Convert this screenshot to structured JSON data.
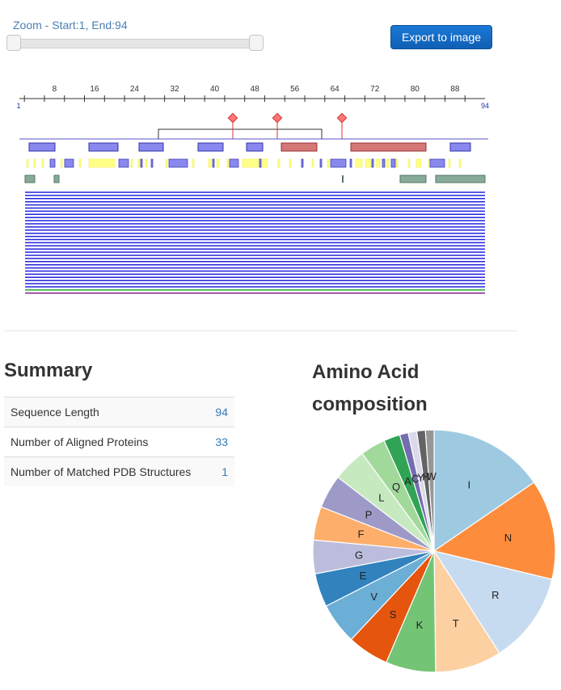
{
  "zoom": {
    "label": "Zoom - Start:1, End:94",
    "start": 1,
    "end": 94
  },
  "export_button": {
    "label": "Export to image"
  },
  "sequence_axis": {
    "min": 1,
    "max": 94,
    "ticks": [
      "8",
      "16",
      "24",
      "32",
      "40",
      "48",
      "56",
      "64",
      "72",
      "80",
      "88"
    ],
    "start_label": "1",
    "end_label": "94"
  },
  "summary": {
    "title": "Summary",
    "rows": [
      {
        "label": "Sequence Length",
        "value": "94"
      },
      {
        "label": "Number of Aligned Proteins",
        "value": "33"
      },
      {
        "label": "Number of Matched PDB Structures",
        "value": "1"
      }
    ]
  },
  "amino_acid": {
    "title": "Amino Acid composition"
  },
  "chart_data": {
    "type": "pie",
    "title": "Amino Acid composition",
    "labels": [
      "I",
      "N",
      "R",
      "T",
      "K",
      "S",
      "V",
      "E",
      "G",
      "F",
      "P",
      "L",
      "Q",
      "A",
      "C",
      "Y",
      "H",
      "W"
    ],
    "values": [
      14.8,
      12.8,
      11.7,
      8.5,
      6.4,
      5.3,
      5.3,
      4.3,
      4.3,
      4.3,
      4.3,
      4.3,
      3.2,
      2.1,
      1.1,
      1.1,
      1.1,
      1.1
    ],
    "colors": [
      "#9ecae1",
      "#fd8d3c",
      "#c6dbef",
      "#fdd0a2",
      "#74c476",
      "#e6550d",
      "#6baed6",
      "#3182bd",
      "#bcbddc",
      "#fdae6b",
      "#9e9ac8",
      "#c7e9c0",
      "#a1d99b",
      "#31a354",
      "#756bb1",
      "#dadaeb",
      "#636363",
      "#969696"
    ]
  }
}
